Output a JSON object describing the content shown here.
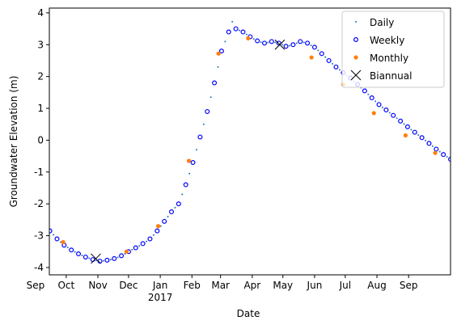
{
  "chart_data": {
    "type": "scatter",
    "xlabel": "Date",
    "ylabel": "Groundwater Elevation (m)",
    "xlim": [
      13.5,
      406
    ],
    "ylim": [
      -4.23,
      4.15
    ],
    "yticks": [
      -4,
      -3,
      -2,
      -1,
      0,
      1,
      2,
      3,
      4
    ],
    "xticks": [
      {
        "value": 0,
        "label": "Sep"
      },
      {
        "value": 30,
        "label": "Oct"
      },
      {
        "value": 61,
        "label": "Nov"
      },
      {
        "value": 91,
        "label": "Dec"
      },
      {
        "value": 122,
        "label": "Jan\n2017"
      },
      {
        "value": 153,
        "label": "Feb"
      },
      {
        "value": 181,
        "label": "Mar"
      },
      {
        "value": 212,
        "label": "Apr"
      },
      {
        "value": 242,
        "label": "May"
      },
      {
        "value": 273,
        "label": "Jun"
      },
      {
        "value": 303,
        "label": "Jul"
      },
      {
        "value": 334,
        "label": "Aug"
      },
      {
        "value": 365,
        "label": "Sep"
      }
    ],
    "legend": "upper right",
    "series": [
      {
        "name": "Daily",
        "color": "#1f77b4",
        "marker": "point",
        "x": [
          17.5,
          24.5,
          31.5,
          38.5,
          45.5,
          52.5,
          59.5,
          66.5,
          73.5,
          80.5,
          87.5,
          94.5,
          101.5,
          108.5,
          115.5,
          122.5,
          129.5,
          136.5,
          143.5,
          150.5,
          157.5,
          164.5,
          171.5,
          178.5,
          185.5,
          192.5,
          199.5,
          206.5,
          213.5,
          220.5,
          227.5,
          234.5,
          241.5,
          248.5,
          255.5,
          262.5,
          269.5,
          276.5,
          283.5,
          290.5,
          297.5,
          304.5,
          311.5,
          318.5,
          325.5,
          332.5,
          339.5,
          346.5,
          353.5,
          360.5,
          367.5,
          374.5,
          381.5,
          388.5,
          395.5,
          402.5
        ],
        "values": [
          -2.97,
          -3.2,
          -3.37,
          -3.51,
          -3.62,
          -3.71,
          -3.78,
          -3.79,
          -3.75,
          -3.68,
          -3.57,
          -3.44,
          -3.32,
          -3.18,
          -2.98,
          -2.7,
          -2.4,
          -2.12,
          -1.7,
          -1.05,
          -0.3,
          0.5,
          1.35,
          2.3,
          3.1,
          3.72,
          3.45,
          3.32,
          3.18,
          3.08,
          3.07,
          3.07,
          3.0,
          2.97,
          3.05,
          3.07,
          2.98,
          2.82,
          2.61,
          2.4,
          2.21,
          2.03,
          1.85,
          1.65,
          1.44,
          1.22,
          1.03,
          0.86,
          0.69,
          0.51,
          0.33,
          0.16,
          -0.01,
          -0.19,
          -0.36,
          -0.52
        ]
      },
      {
        "name": "Weekly",
        "color": "#0000ff",
        "marker": "circle-open",
        "x": [
          14,
          21,
          28,
          35,
          42,
          49,
          56,
          63,
          70,
          77,
          84,
          91,
          98,
          105,
          112,
          119,
          126,
          133,
          140,
          147,
          154,
          161,
          168,
          175,
          182,
          189,
          196,
          203,
          210,
          217,
          224,
          231,
          238,
          245,
          252,
          259,
          266,
          273,
          280,
          287,
          294,
          301,
          308,
          315,
          322,
          329,
          336,
          343,
          350,
          357,
          364,
          371,
          378,
          385,
          392,
          399,
          406
        ],
        "values": [
          -2.85,
          -3.1,
          -3.3,
          -3.45,
          -3.57,
          -3.67,
          -3.75,
          -3.8,
          -3.77,
          -3.72,
          -3.63,
          -3.5,
          -3.38,
          -3.25,
          -3.1,
          -2.85,
          -2.55,
          -2.25,
          -2.0,
          -1.4,
          -0.7,
          0.1,
          0.9,
          1.8,
          2.8,
          3.4,
          3.5,
          3.4,
          3.25,
          3.12,
          3.05,
          3.1,
          3.05,
          2.95,
          3.0,
          3.1,
          3.05,
          2.92,
          2.72,
          2.5,
          2.3,
          2.12,
          1.95,
          1.75,
          1.55,
          1.33,
          1.12,
          0.95,
          0.78,
          0.6,
          0.42,
          0.25,
          0.08,
          -0.1,
          -0.28,
          -0.45,
          -0.6
        ]
      },
      {
        "name": "Monthly",
        "color": "#ff7f0e",
        "marker": "circle",
        "x": [
          27,
          89,
          120,
          150,
          179,
          208,
          270,
          301,
          331,
          362,
          391
        ],
        "values": [
          -3.2,
          -3.5,
          -2.7,
          -0.65,
          2.72,
          3.2,
          2.6,
          1.75,
          0.85,
          0.15,
          -0.4
        ]
      },
      {
        "name": "Biannual",
        "color": "#000000",
        "marker": "x",
        "x": [
          59,
          239
        ],
        "values": [
          -3.72,
          3.0
        ]
      }
    ]
  }
}
